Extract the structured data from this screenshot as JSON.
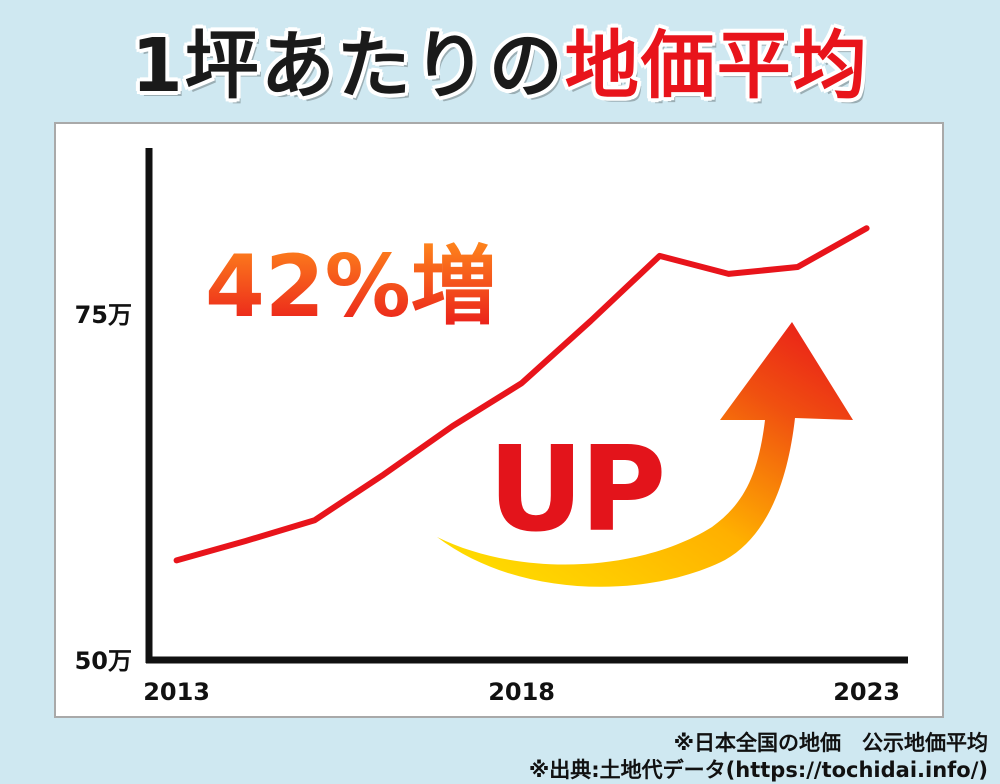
{
  "title": {
    "part1": "1坪あたりの",
    "part2": "地価平均"
  },
  "chart_data": {
    "type": "line",
    "x": [
      2013,
      2014,
      2015,
      2016,
      2017,
      2018,
      2019,
      2020,
      2021,
      2022,
      2023
    ],
    "values": [
      57.2,
      58.6,
      60.1,
      63.4,
      66.9,
      70.0,
      74.5,
      79.2,
      77.9,
      78.4,
      81.2
    ],
    "y_ticks": [
      {
        "value": 50,
        "label": "50万"
      },
      {
        "value": 75,
        "label": "75万"
      }
    ],
    "x_ticks": [
      {
        "value": 2013,
        "label": "2013"
      },
      {
        "value": 2018,
        "label": "2018"
      },
      {
        "value": 2023,
        "label": "2023"
      }
    ],
    "xlim": [
      2012.6,
      2023.6
    ],
    "ylim": [
      50,
      87
    ],
    "line_color": "#e8141b",
    "annotations": {
      "growth": "42%増",
      "up": "UP"
    }
  },
  "footnotes": {
    "note1": "※日本全国の地価　公示地価平均",
    "note2": "※出典:土地代データ(https://tochidai.info/)"
  }
}
